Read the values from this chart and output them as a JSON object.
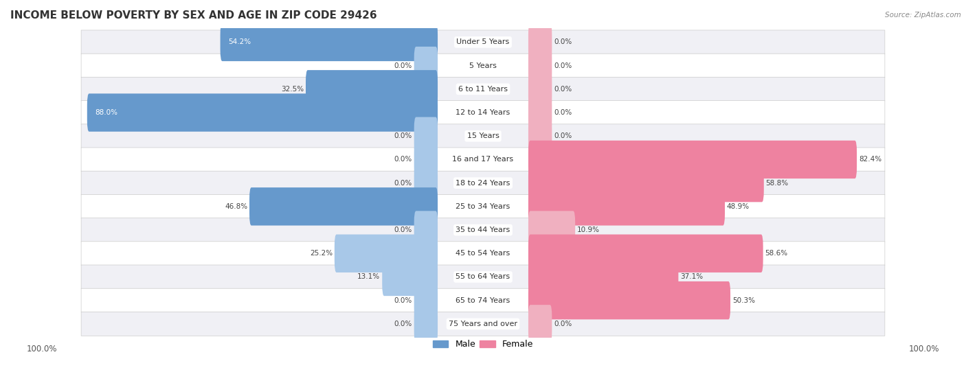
{
  "title": "INCOME BELOW POVERTY BY SEX AND AGE IN ZIP CODE 29426",
  "source": "Source: ZipAtlas.com",
  "categories": [
    "Under 5 Years",
    "5 Years",
    "6 to 11 Years",
    "12 to 14 Years",
    "15 Years",
    "16 and 17 Years",
    "18 to 24 Years",
    "25 to 34 Years",
    "35 to 44 Years",
    "45 to 54 Years",
    "55 to 64 Years",
    "65 to 74 Years",
    "75 Years and over"
  ],
  "male_values": [
    54.2,
    0.0,
    32.5,
    88.0,
    0.0,
    0.0,
    0.0,
    46.8,
    0.0,
    25.2,
    13.1,
    0.0,
    0.0
  ],
  "female_values": [
    0.0,
    0.0,
    0.0,
    0.0,
    0.0,
    82.4,
    58.8,
    48.9,
    10.9,
    58.6,
    37.1,
    50.3,
    0.0
  ],
  "male_color_light": "#a8c8e8",
  "male_color_dark": "#6699cc",
  "female_color_light": "#f0b0c0",
  "female_color_dark": "#ee82a0",
  "bg_odd": "#f0f0f5",
  "bg_even": "#ffffff",
  "label_color": "#444444",
  "title_fontsize": 11,
  "axis_max": 100.0,
  "legend_male_color": "#6699cc",
  "legend_female_color": "#ee82a0",
  "min_bar": 5.0
}
